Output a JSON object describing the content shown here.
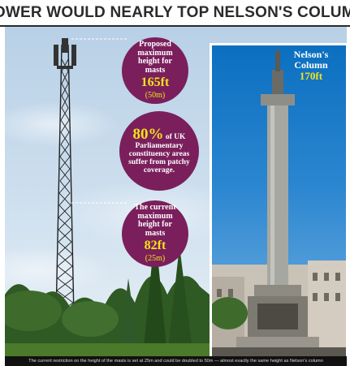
{
  "header": {
    "title": "TOWER WOULD NEARLY TOP NELSON'S COLUMN"
  },
  "bubbles": {
    "proposed": {
      "label": "Proposed maximum height for masts",
      "value": "165ft",
      "sub": "(50m)"
    },
    "coverage": {
      "percent": "80%",
      "text": "of UK Parliamentary constituency areas suffer from patchy coverage."
    },
    "current": {
      "label": "The current maximum height for masts",
      "value": "82ft",
      "sub": "(25m)"
    }
  },
  "nelson": {
    "label": "Nelson's Column",
    "value": "170ft"
  },
  "caption": "The current restriction on the height of the masts is set at 25m and could be doubled to 50m — almost exactly the same height as Nelson's column",
  "colors": {
    "bubble": "#7a1f5c",
    "highlight": "#f5e21a",
    "panel_sky": "#1a7cc8"
  }
}
